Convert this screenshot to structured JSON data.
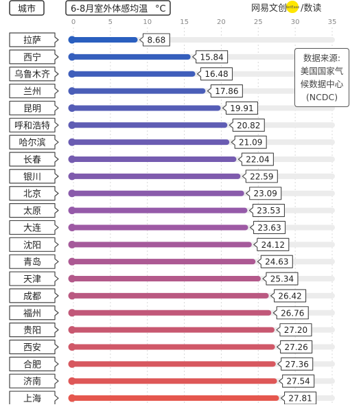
{
  "header": {
    "city_label": "城市",
    "chart_title": "6-8月室外体感均温",
    "unit": "°C",
    "brand_prefix": "网易",
    "brand_highlight": "文创",
    "brand_badge": "NetEase",
    "brand_suffix": "/数读"
  },
  "source_note": {
    "line1": "数据来源:",
    "line2": "美国国家气",
    "line3": "候数据中心",
    "line4": "(NCDC)"
  },
  "chart_data": {
    "type": "bar",
    "orientation": "horizontal",
    "title": "6-8月室外体感均温",
    "unit": "°C",
    "xlim": [
      0,
      35
    ],
    "ticks": [
      0,
      5,
      10,
      15,
      20,
      25,
      30,
      35
    ],
    "categories": [
      "拉萨",
      "西宁",
      "乌鲁木齐",
      "兰州",
      "昆明",
      "呼和浩特",
      "哈尔滨",
      "长春",
      "银川",
      "北京",
      "太原",
      "大连",
      "沈阳",
      "青岛",
      "天津",
      "成都",
      "福州",
      "贵阳",
      "西安",
      "合肥",
      "济南",
      "上海"
    ],
    "values": [
      8.68,
      15.84,
      16.48,
      17.86,
      19.91,
      20.82,
      21.09,
      22.04,
      22.59,
      23.09,
      23.53,
      23.63,
      24.12,
      24.63,
      25.34,
      26.42,
      26.76,
      27.2,
      27.26,
      27.36,
      27.54,
      27.81
    ],
    "value_labels": [
      "8.68",
      "15.84",
      "16.48",
      "17.86",
      "19.91",
      "20.82",
      "21.09",
      "22.04",
      "22.59",
      "23.09",
      "23.53",
      "23.63",
      "24.12",
      "24.63",
      "25.34",
      "26.42",
      "26.76",
      "27.20",
      "27.26",
      "27.36",
      "27.54",
      "27.81"
    ],
    "colors": {
      "cold": "#2a5fbf",
      "mid": "#9a5aa8",
      "warm": "#e5574e",
      "track": "#ececec",
      "gridline": "#d8d8d8"
    }
  }
}
